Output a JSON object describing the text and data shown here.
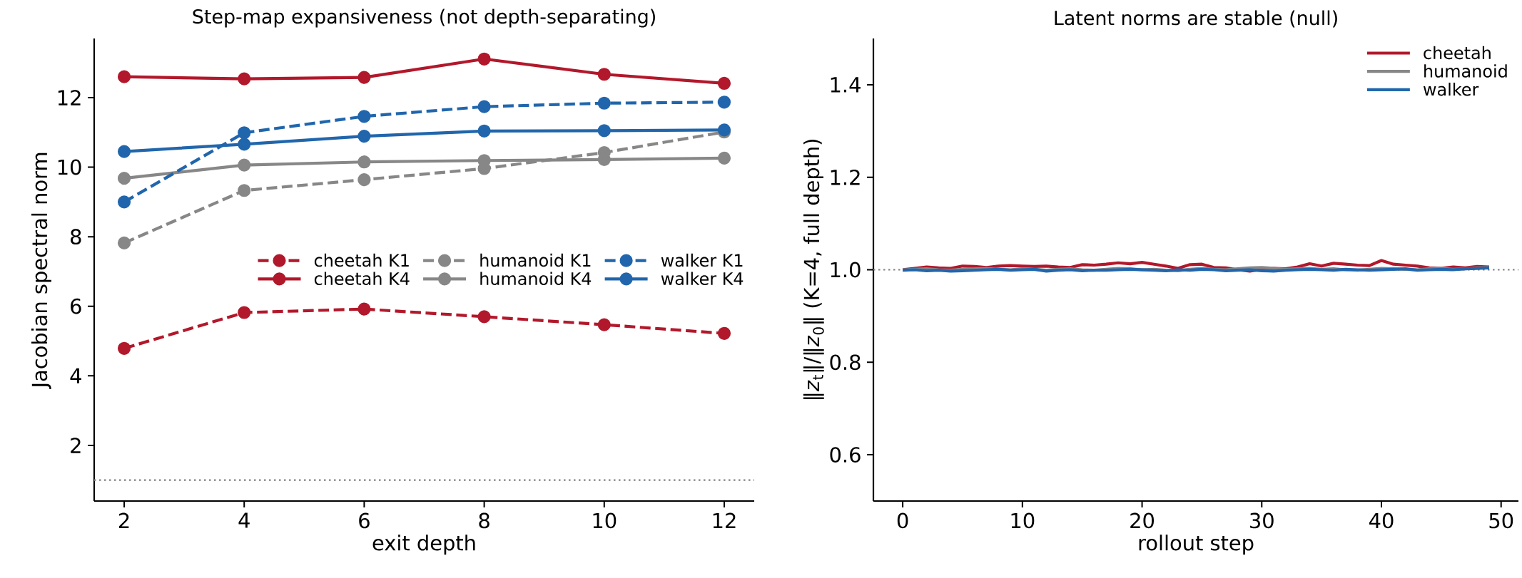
{
  "chart_data": [
    {
      "type": "line",
      "title": "Step-map expansiveness (not depth-separating)",
      "xlabel": "exit depth",
      "ylabel": "Jacobian spectral norm",
      "x": [
        2,
        4,
        6,
        8,
        10,
        12
      ],
      "xlim": [
        1.5,
        12.5
      ],
      "ylim": [
        0.4,
        13.7
      ],
      "xticks": [
        2,
        4,
        6,
        8,
        10,
        12
      ],
      "yticks": [
        2,
        4,
        6,
        8,
        10,
        12
      ],
      "marker": "circle",
      "legend": "right",
      "ref_lines": [
        {
          "axis": "y",
          "value": 1,
          "color": "#808080",
          "line_style": "dotted"
        }
      ],
      "series": [
        {
          "name": "cheetah K1",
          "color": "#b2182b",
          "line_style": "dashed",
          "values": [
            4.79,
            5.82,
            5.92,
            5.7,
            5.47,
            5.22
          ]
        },
        {
          "name": "cheetah K4",
          "color": "#b2182b",
          "line_style": "solid",
          "values": [
            12.6,
            12.54,
            12.58,
            13.11,
            12.67,
            12.41
          ]
        },
        {
          "name": "humanoid K1",
          "color": "#878787",
          "line_style": "dashed",
          "values": [
            7.82,
            9.33,
            9.64,
            9.96,
            10.42,
            11.01
          ]
        },
        {
          "name": "humanoid K4",
          "color": "#878787",
          "line_style": "solid",
          "values": [
            9.68,
            10.06,
            10.15,
            10.19,
            10.22,
            10.26
          ]
        },
        {
          "name": "walker K1",
          "color": "#2166ac",
          "line_style": "dashed",
          "values": [
            9.0,
            10.99,
            11.46,
            11.74,
            11.84,
            11.87
          ]
        },
        {
          "name": "walker K4",
          "color": "#2166ac",
          "line_style": "solid",
          "values": [
            10.45,
            10.66,
            10.89,
            11.04,
            11.05,
            11.07
          ]
        }
      ]
    },
    {
      "type": "line",
      "title": "Latent norms are stable (null)",
      "xlabel": "rollout step",
      "ylabel": "‖*z*$_{t}$‖/‖*z*$_{0}$‖ (K=4, full depth)",
      "x": [
        0,
        1,
        2,
        3,
        4,
        5,
        6,
        7,
        8,
        9,
        10,
        11,
        12,
        13,
        14,
        15,
        16,
        17,
        18,
        19,
        20,
        21,
        22,
        23,
        24,
        25,
        26,
        27,
        28,
        29,
        30,
        31,
        32,
        33,
        34,
        35,
        36,
        37,
        38,
        39,
        40,
        41,
        42,
        43,
        44,
        45,
        46,
        47,
        48,
        49
      ],
      "xlim": [
        -2.45,
        51.45
      ],
      "ylim": [
        0.5,
        1.5
      ],
      "xticks": [
        0,
        10,
        20,
        30,
        40,
        50
      ],
      "yticks": [
        0.6,
        0.8,
        {
          "value": 1.0,
          "label": "1.0"
        },
        1.2,
        1.4
      ],
      "legend": "top right",
      "ref_lines": [
        {
          "axis": "y",
          "value": 1.0,
          "color": "#808080",
          "line_style": "dotted"
        }
      ],
      "series": [
        {
          "name": "cheetah",
          "color": "#b2182b",
          "line_style": "solid",
          "values": [
            1.0,
            1.003,
            1.006,
            1.004,
            1.003,
            1.008,
            1.007,
            1.005,
            1.008,
            1.009,
            1.008,
            1.007,
            1.008,
            1.006,
            1.005,
            1.011,
            1.01,
            1.012,
            1.015,
            1.013,
            1.016,
            1.012,
            1.008,
            1.003,
            1.011,
            1.012,
            1.005,
            1.004,
            1.0,
            0.997,
            1.001,
            1.003,
            1.002,
            1.006,
            1.013,
            1.008,
            1.014,
            1.012,
            1.01,
            1.009,
            1.02,
            1.012,
            1.01,
            1.008,
            1.004,
            1.003,
            1.006,
            1.004,
            1.007,
            1.006
          ]
        },
        {
          "name": "humanoid",
          "color": "#878787",
          "line_style": "solid",
          "values": [
            1.0,
            1.001,
            1.002,
            1.0,
            0.999,
            1.001,
            1.002,
            1.003,
            1.001,
            1.0,
            1.002,
            1.001,
            0.999,
            1.001,
            1.002,
            1.0,
            0.999,
            1.001,
            1.003,
            1.002,
            1.0,
            1.001,
            0.999,
            0.998,
            1.001,
            1.003,
            1.001,
            1.0,
            1.002,
            1.004,
            1.005,
            1.003,
            1.001,
            1.002,
            1.003,
            1.001,
            1.002,
            1.0,
            0.999,
            1.001,
            1.003,
            1.002,
            1.001,
            1.0,
            1.002,
            1.003,
            1.001,
            1.002,
            1.004,
            1.005
          ]
        },
        {
          "name": "walker",
          "color": "#2166ac",
          "line_style": "solid",
          "values": [
            0.999,
            1.0,
            0.998,
            0.999,
            0.997,
            0.998,
            0.999,
            1.0,
            1.001,
            0.999,
            1.0,
            1.001,
            0.997,
            0.999,
            1.0,
            0.998,
            0.999,
            0.999,
            1.0,
            1.001,
            1.0,
            0.999,
            0.998,
            1.0,
            0.999,
            1.001,
            1.0,
            0.998,
            0.999,
            1.0,
            0.998,
            0.997,
            0.999,
            1.0,
            1.001,
            1.0,
            0.999,
            1.001,
            1.0,
            0.999,
            1.0,
            1.001,
            1.002,
            0.999,
            1.0,
            1.001,
            1.0,
            1.002,
            1.003,
            1.004
          ]
        }
      ]
    }
  ]
}
